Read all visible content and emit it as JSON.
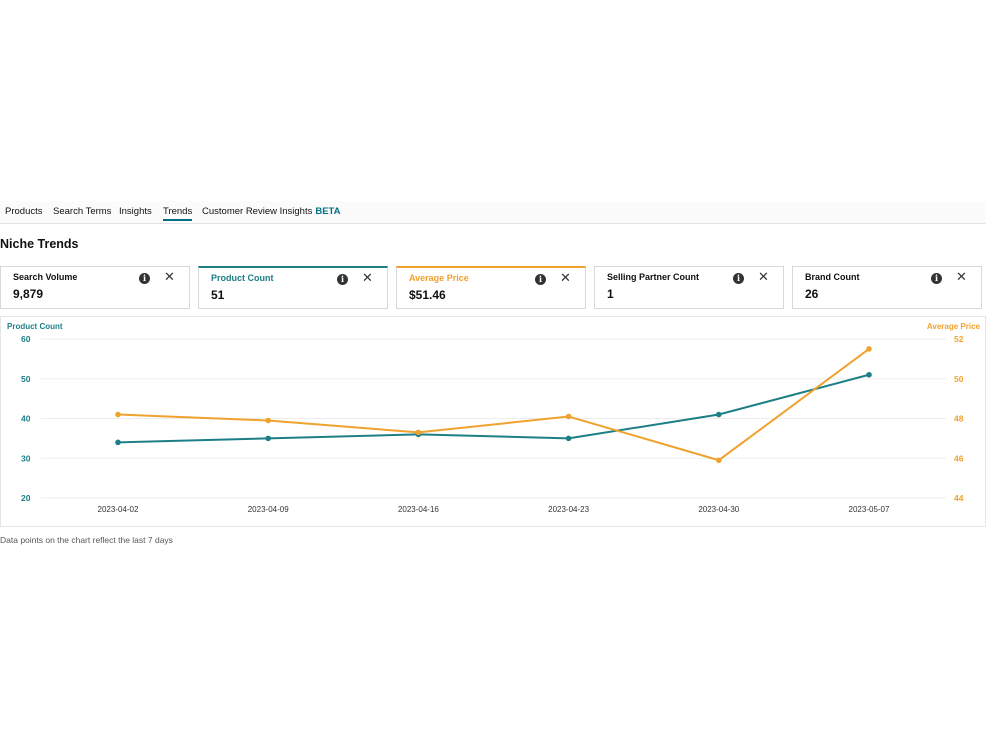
{
  "tabs": [
    {
      "label": "Products"
    },
    {
      "label": "Search Terms"
    },
    {
      "label": "Insights"
    },
    {
      "label": "Trends",
      "active": true
    },
    {
      "label": "Customer Review Insights",
      "badge": "BETA"
    }
  ],
  "section_title": "Niche Trends",
  "metric_cards": [
    {
      "label": "Search Volume",
      "value": "9,879",
      "accent": "",
      "info_icon": "i",
      "close_icon": "✕"
    },
    {
      "label": "Product Count",
      "value": "51",
      "accent": "#1c7f86",
      "info_icon": "i",
      "close_icon": "✕"
    },
    {
      "label": "Average Price",
      "value": "$51.46",
      "accent": "#f0a22e",
      "info_icon": "i",
      "close_icon": "✕"
    },
    {
      "label": "Selling Partner Count",
      "value": "1",
      "accent": "",
      "info_icon": "i",
      "close_icon": "✕"
    },
    {
      "label": "Brand Count",
      "value": "26",
      "accent": "",
      "info_icon": "i",
      "close_icon": "✕"
    }
  ],
  "chart_data": {
    "type": "line",
    "x": [
      "2023-04-02",
      "2023-04-09",
      "2023-04-16",
      "2023-04-23",
      "2023-04-30",
      "2023-05-07"
    ],
    "series": [
      {
        "name": "Product Count",
        "axis": "left",
        "color": "#1c7f86",
        "values": [
          34,
          35,
          36,
          35,
          41,
          51
        ]
      },
      {
        "name": "Average Price",
        "axis": "right",
        "color": "#f0a22e",
        "values": [
          48.2,
          47.9,
          47.3,
          48.1,
          45.9,
          51.5
        ]
      }
    ],
    "left_axis": {
      "label": "Product Count",
      "ticks": [
        "60",
        "50",
        "40",
        "30",
        "20"
      ],
      "ylim": [
        20,
        60
      ]
    },
    "right_axis": {
      "label": "Average Price",
      "ticks": [
        "52",
        "50",
        "48",
        "46",
        "44"
      ],
      "ylim": [
        44,
        52
      ]
    },
    "grid": true
  },
  "footnote": "Data points on the chart reflect the last 7 days"
}
